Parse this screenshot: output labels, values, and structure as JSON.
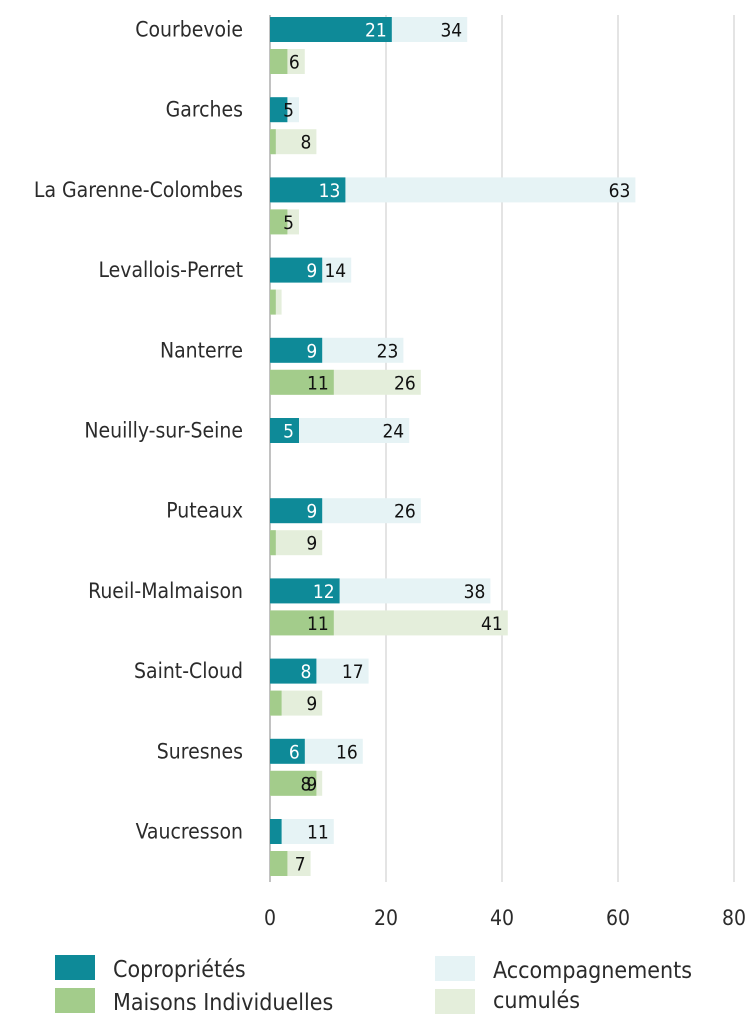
{
  "chart_data": {
    "type": "bar",
    "orientation": "horizontal",
    "categories": [
      "Courbevoie",
      "Garches",
      "La Garenne-Colombes",
      "Levallois-Perret",
      "Nanterre",
      "Neuilly-sur-Seine",
      "Puteaux",
      "Rueil-Malmaison",
      "Saint-Cloud",
      "Suresnes",
      "Vaucresson"
    ],
    "series": [
      {
        "name": "Copropriétés",
        "color": "#0e8a98",
        "values": [
          21,
          3,
          13,
          9,
          9,
          5,
          9,
          12,
          8,
          6,
          2
        ]
      },
      {
        "name": "Accompagnements cumulés",
        "color": "#e6f3f5",
        "values": [
          34,
          5,
          63,
          14,
          23,
          24,
          26,
          38,
          17,
          16,
          11
        ]
      },
      {
        "name": "Maisons Individuelles",
        "color": "#a3cc8b",
        "values": [
          3,
          1,
          3,
          1,
          11,
          0,
          1,
          11,
          2,
          8,
          3
        ]
      },
      {
        "name": "Accompagnements cumulés",
        "color": "#e4eedb",
        "values": [
          6,
          8,
          5,
          2,
          26,
          0,
          9,
          41,
          9,
          9,
          7
        ]
      }
    ],
    "labels": {
      "copro": [
        "21",
        "",
        "13",
        "9",
        "9",
        "5",
        "9",
        "12",
        "8",
        "6",
        ""
      ],
      "copro_cumul": [
        "34",
        "5",
        "63",
        "14",
        "23",
        "24",
        "26",
        "38",
        "17",
        "16",
        "11"
      ],
      "maisons": [
        "",
        "",
        "",
        "",
        "11",
        "",
        "",
        "11",
        "",
        "8",
        ""
      ],
      "maisons_cumul": [
        "6",
        "8",
        "5",
        "",
        "26",
        "",
        "9",
        "41",
        "9",
        "9",
        "7"
      ]
    },
    "xlim": [
      0,
      80
    ],
    "xticks": [
      "0",
      "20",
      "40",
      "60",
      "80"
    ],
    "grid": true,
    "legend_position": "bottom"
  },
  "legend": {
    "copro": "Copropriétés",
    "maisons": "Maisons Individuelles",
    "cumul_line1": "Accompagnements",
    "cumul_line2": "cumulés",
    "colors": {
      "copro": "#0e8a98",
      "maisons": "#a3cc8b",
      "cumul_copro": "#e6f3f5",
      "cumul_maisons": "#e4eedb"
    }
  }
}
